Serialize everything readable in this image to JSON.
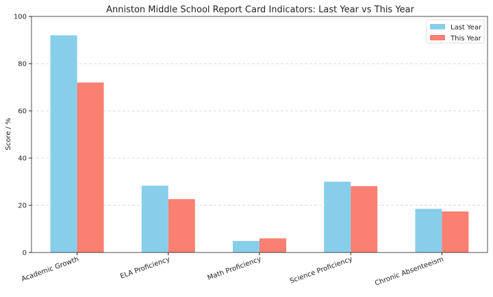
{
  "chart_data": {
    "type": "bar",
    "title": "Anniston Middle School Report Card Indicators: Last Year vs This Year",
    "xlabel": "",
    "ylabel": "Score / %",
    "ylim": [
      0,
      100
    ],
    "yticks": [
      "0",
      "20",
      "40",
      "60",
      "80",
      "100"
    ],
    "grid": "y dashed",
    "legend": "top-right",
    "categories": [
      "Academic Growth",
      "ELA Proficiency",
      "Math Proficiency",
      "Science Proficiency",
      "Chronic Absenteeism"
    ],
    "series": [
      {
        "name": "Last Year",
        "color": "#87CEEB",
        "values": [
          92,
          28.3,
          4.9,
          30,
          18.5
        ]
      },
      {
        "name": "This Year",
        "color": "#FA8072",
        "values": [
          72,
          22.6,
          6,
          28.1,
          17.4
        ]
      }
    ]
  }
}
